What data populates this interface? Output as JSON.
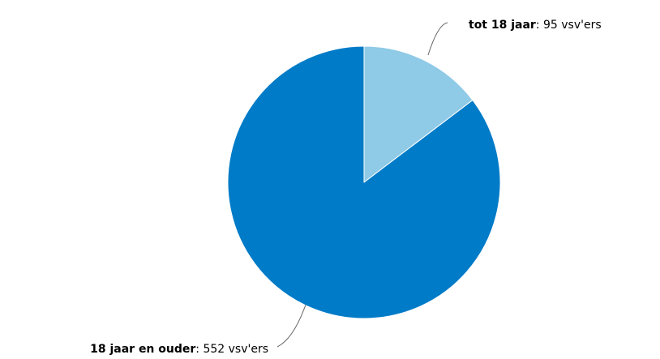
{
  "chart_data": {
    "type": "pie",
    "unit_suffix": "vsv'ers",
    "slices": [
      {
        "name": "tot 18 jaar",
        "value": 95,
        "color": "#8fcae7"
      },
      {
        "name": "18 jaar en ouder",
        "value": 552,
        "color": "#007bc7"
      }
    ],
    "start_angle": "12 o'clock",
    "direction": "clockwise",
    "legend": "none",
    "data_labels": "outside with connector lines"
  }
}
